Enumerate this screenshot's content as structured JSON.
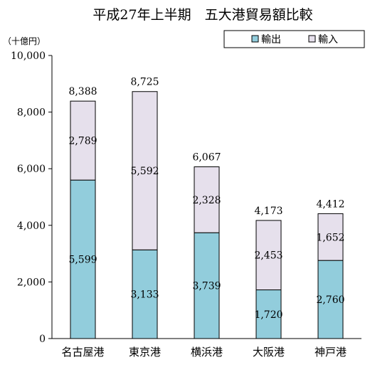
{
  "chart_data": {
    "type": "bar",
    "stacked": true,
    "title": "平成27年上半期　五大港貿易額比較",
    "unit_label": "（十億円）",
    "categories": [
      "名古屋港",
      "東京港",
      "横浜港",
      "大阪港",
      "神戸港"
    ],
    "series": [
      {
        "name": "輸出",
        "values": [
          5599,
          3133,
          3739,
          1720,
          2760
        ],
        "color": "#92cddc",
        "labels": [
          "5,599",
          "3,133",
          "3,739",
          "1,720",
          "2,760"
        ]
      },
      {
        "name": "輸入",
        "values": [
          2789,
          5592,
          2328,
          2453,
          1652
        ],
        "color": "#e6e0ec",
        "labels": [
          "2,789",
          "5,592",
          "2,328",
          "2,453",
          "1,652"
        ]
      }
    ],
    "totals": [
      8388,
      8725,
      6067,
      4173,
      4412
    ],
    "total_labels": [
      "8,388",
      "8,725",
      "6,067",
      "4,173",
      "4,412"
    ],
    "ylim": [
      0,
      10000
    ],
    "yticks": [
      0,
      2000,
      4000,
      6000,
      8000,
      10000
    ],
    "ytick_labels": [
      "0",
      "2,000",
      "4,000",
      "6,000",
      "8,000",
      "10,000"
    ],
    "legend_position": "top-right",
    "grid": false
  }
}
